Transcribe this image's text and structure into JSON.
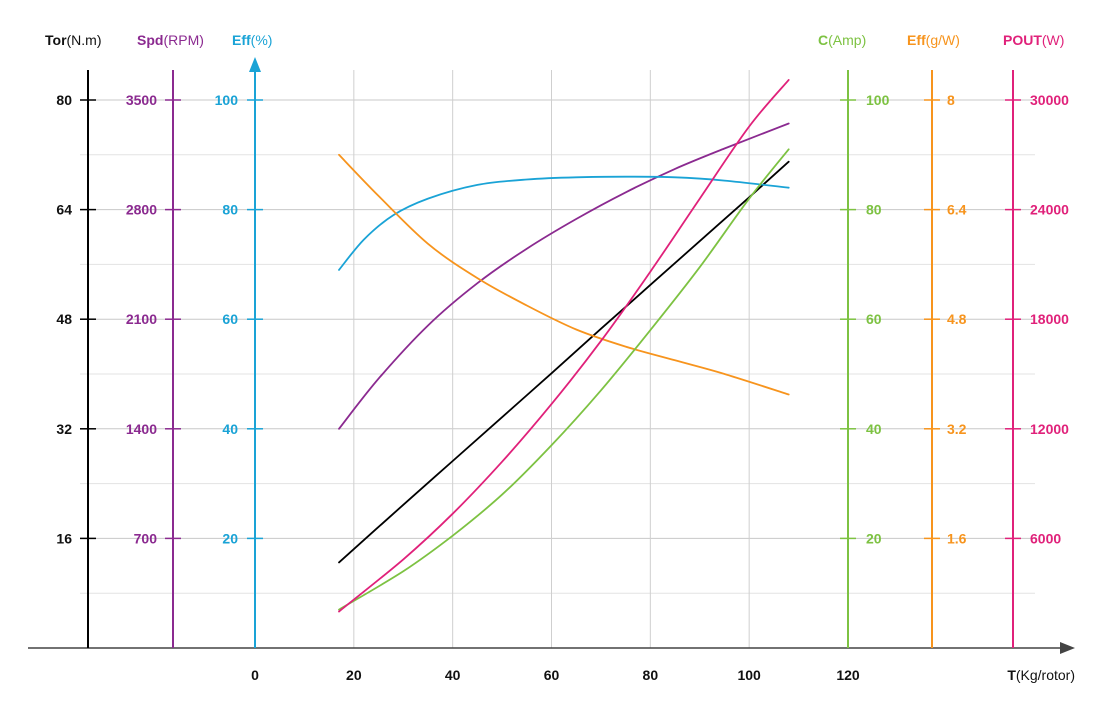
{
  "chart_data": {
    "type": "line",
    "x_axis": {
      "label_bold": "T",
      "label_unit": "(Kg/rotor)",
      "ticks": [
        0,
        20,
        40,
        60,
        80,
        100,
        120
      ],
      "range": [
        0,
        120
      ]
    },
    "left_axes": [
      {
        "id": "tor",
        "title_bold": "Tor",
        "title_unit": "(N.m)",
        "color": "#000000",
        "ticks": [
          16,
          32,
          48,
          64,
          80
        ],
        "range": [
          0,
          80
        ]
      },
      {
        "id": "spd",
        "title_bold": "Spd",
        "title_unit": "(RPM)",
        "color": "#8B2A90",
        "ticks": [
          700,
          1400,
          2100,
          2800,
          3500
        ],
        "range": [
          0,
          3500
        ]
      },
      {
        "id": "eff",
        "title_bold": "Eff",
        "title_unit": "(%)",
        "color": "#1AA3D6",
        "ticks": [
          20,
          40,
          60,
          80,
          100
        ],
        "range": [
          0,
          100
        ]
      }
    ],
    "right_axes": [
      {
        "id": "amp",
        "title_bold": "C",
        "title_unit": "(Amp)",
        "color": "#7DC242",
        "ticks": [
          20,
          40,
          60,
          80,
          100
        ],
        "range": [
          0,
          100
        ]
      },
      {
        "id": "effg",
        "title_bold": "Eff",
        "title_unit": "(g/W)",
        "color": "#F7941D",
        "ticks": [
          "1.6",
          "3.2",
          "4.8",
          "6.4",
          "8"
        ],
        "range": [
          0,
          8
        ]
      },
      {
        "id": "pout",
        "title_bold": "POUT",
        "title_unit": "(W)",
        "color": "#E0217A",
        "ticks": [
          6000,
          12000,
          18000,
          24000,
          30000
        ],
        "range": [
          0,
          30000
        ]
      }
    ],
    "grid": true,
    "series": [
      {
        "axis": "tor",
        "color": "#000000",
        "x": [
          17,
          30,
          40,
          50,
          60,
          70,
          80,
          90,
          100,
          108
        ],
        "y": [
          12.5,
          20.9,
          27.3,
          33.7,
          40.1,
          46.6,
          53.0,
          59.4,
          65.8,
          71.0
        ]
      },
      {
        "axis": "spd",
        "color": "#8B2A90",
        "x": [
          17,
          25,
          35,
          45,
          55,
          65,
          75,
          85,
          95,
          108
        ],
        "y": [
          1400,
          1720,
          2060,
          2330,
          2550,
          2740,
          2910,
          3060,
          3190,
          3350
        ]
      },
      {
        "axis": "eff",
        "color": "#1AA3D6",
        "x": [
          17,
          22,
          28,
          35,
          45,
          55,
          65,
          75,
          85,
          95,
          108
        ],
        "y": [
          69,
          74.5,
          79,
          82,
          84.5,
          85.5,
          85.9,
          86,
          85.9,
          85.3,
          84
        ]
      },
      {
        "axis": "effg",
        "color": "#F7941D",
        "x": [
          17,
          25,
          35,
          45,
          55,
          65,
          75,
          85,
          95,
          108
        ],
        "y": [
          7.2,
          6.6,
          5.9,
          5.4,
          5.0,
          4.65,
          4.4,
          4.2,
          4.0,
          3.7
        ]
      },
      {
        "axis": "amp",
        "color": "#7DC242",
        "x": [
          17,
          30,
          40,
          50,
          60,
          70,
          80,
          90,
          100,
          108
        ],
        "y": [
          7,
          14,
          20.5,
          28,
          37,
          47,
          58,
          69.5,
          82,
          91
        ]
      },
      {
        "axis": "pout",
        "color": "#E0217A",
        "x": [
          17,
          30,
          40,
          50,
          60,
          70,
          80,
          90,
          100,
          108
        ],
        "y": [
          2000,
          4850,
          7350,
          10200,
          13350,
          16800,
          20600,
          24600,
          28550,
          31100
        ]
      }
    ]
  }
}
